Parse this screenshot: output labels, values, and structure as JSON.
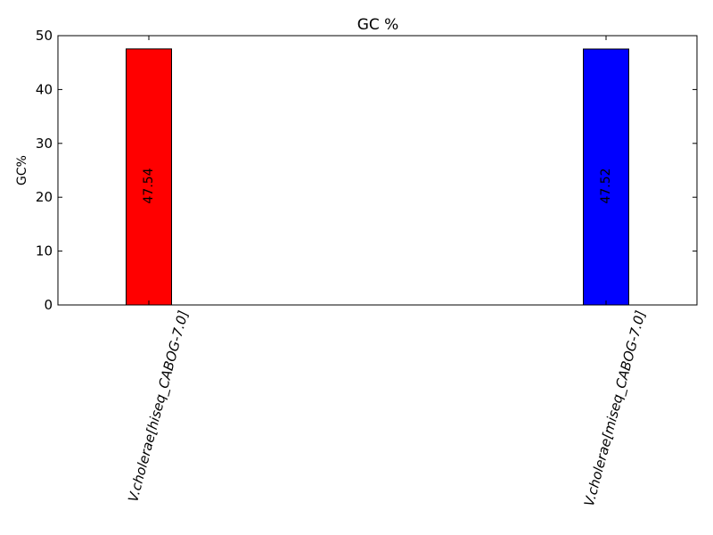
{
  "chart_data": {
    "type": "bar",
    "title": "GC %",
    "xlabel": "",
    "ylabel": "GC%",
    "ylim": [
      0,
      50
    ],
    "yticks": [
      0,
      10,
      20,
      30,
      40,
      50
    ],
    "categories": [
      "V.cholerae[hiseq_CABOG-7.0]",
      "V.cholerae[miseq_CABOG-7.0]"
    ],
    "values": [
      47.54,
      47.52
    ],
    "value_labels": [
      "47.54",
      "47.52"
    ],
    "colors": [
      "#ff0000",
      "#0000ff"
    ],
    "grid": false,
    "legend": "none"
  }
}
